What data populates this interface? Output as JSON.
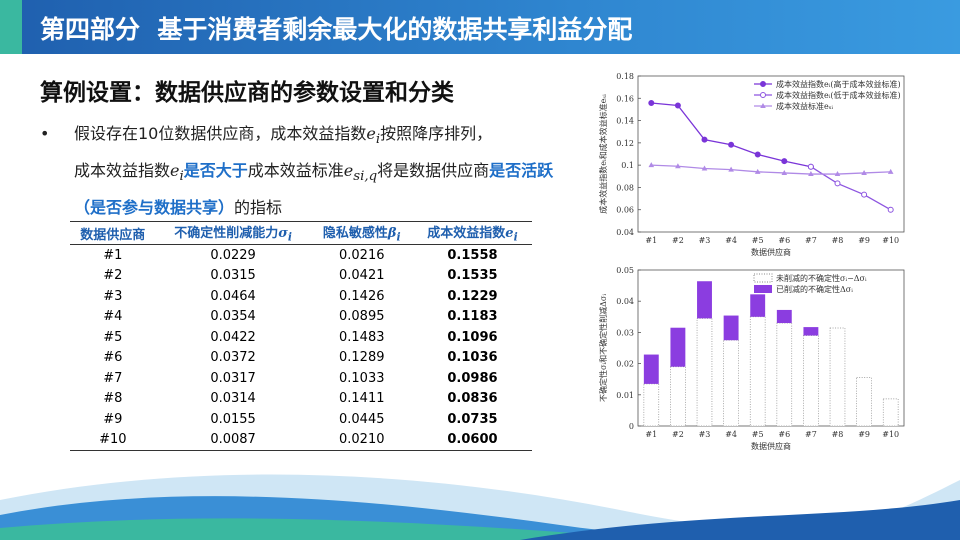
{
  "header": {
    "title": "第四部分  基于消费者剩余最大化的数据共享利益分配"
  },
  "section": {
    "title": "算例设置：数据供应商的参数设置和分类"
  },
  "bullet": {
    "segments": [
      "假设存在10位数据供应商，成本效益指数",
      "e",
      "i",
      "按照降序排列，",
      "成本效益指数",
      "e",
      "i",
      "是否大于",
      "成本效益标准",
      "e",
      "si,q",
      "将是数据供应商",
      "是否活跃（是否参与数据共享）",
      "的指标"
    ]
  },
  "table": {
    "columns": [
      [
        "数据供应商"
      ],
      [
        "不确定性削减能力",
        "σ",
        "i"
      ],
      [
        "隐私敏感性",
        "β",
        "i"
      ],
      [
        "成本效益指数",
        "e",
        "i"
      ]
    ],
    "rows": [
      [
        "#1",
        "0.0229",
        "0.0216",
        "0.1558"
      ],
      [
        "#2",
        "0.0315",
        "0.0421",
        "0.1535"
      ],
      [
        "#3",
        "0.0464",
        "0.1426",
        "0.1229"
      ],
      [
        "#4",
        "0.0354",
        "0.0895",
        "0.1183"
      ],
      [
        "#5",
        "0.0422",
        "0.1483",
        "0.1096"
      ],
      [
        "#6",
        "0.0372",
        "0.1289",
        "0.1036"
      ],
      [
        "#7",
        "0.0317",
        "0.1033",
        "0.0986"
      ],
      [
        "#8",
        "0.0314",
        "0.1411",
        "0.0836"
      ],
      [
        "#9",
        "0.0155",
        "0.0445",
        "0.0735"
      ],
      [
        "#10",
        "0.0087",
        "0.0210",
        "0.0600"
      ]
    ]
  },
  "chart_data": [
    {
      "type": "line",
      "x_label": "数据供应商",
      "y_label": "成本效益指数eᵢ和成本效益标准eₛᵢ",
      "legend": "top-right",
      "categories": [
        "#1",
        "#2",
        "#3",
        "#4",
        "#5",
        "#6",
        "#7",
        "#8",
        "#9",
        "#10"
      ],
      "ylim": [
        0.04,
        0.18
      ],
      "yticks": [
        0.04,
        0.06,
        0.08,
        0.1,
        0.12,
        0.14,
        0.16,
        0.18
      ],
      "series": [
        {
          "name": "成本效益指数eᵢ(高于成本效益标准)",
          "color": "#7a35d8",
          "marker": "circle",
          "values": [
            0.1558,
            0.1535,
            0.1229,
            0.1183,
            0.1096,
            0.1036,
            0.0986,
            null,
            null,
            null
          ]
        },
        {
          "name": "成本效益指数eᵢ(低于成本效益标准)",
          "color": "#8d55e0",
          "marker": "open-circle",
          "values": [
            null,
            null,
            null,
            null,
            null,
            null,
            0.0986,
            0.0836,
            0.0735,
            0.06
          ]
        },
        {
          "name": "成本效益标准eₛᵢ",
          "color": "#b08ae6",
          "marker": "triangle",
          "values": [
            0.1,
            0.099,
            0.097,
            0.096,
            0.094,
            0.093,
            0.092,
            0.092,
            0.093,
            0.094
          ]
        }
      ]
    },
    {
      "type": "stacked-bar",
      "x_label": "数据供应商",
      "y_label": "不确定性σᵢ和不确定性削减Δσᵢ",
      "legend": "top-right",
      "categories": [
        "#1",
        "#2",
        "#3",
        "#4",
        "#5",
        "#6",
        "#7",
        "#8",
        "#9",
        "#10"
      ],
      "ylim": [
        0,
        0.05
      ],
      "yticks": [
        0,
        0.01,
        0.02,
        0.03,
        0.04,
        0.05
      ],
      "series": [
        {
          "name": "未削减的不确定性σᵢ−Δσᵢ",
          "color": "#ffffff",
          "border": "dotted",
          "values": [
            0.0135,
            0.019,
            0.0345,
            0.0275,
            0.035,
            0.033,
            0.029,
            0.0314,
            0.0155,
            0.0087
          ]
        },
        {
          "name": "已削减的不确定性Δσᵢ",
          "color": "#8b3de0",
          "values": [
            0.0094,
            0.0125,
            0.0119,
            0.0079,
            0.0072,
            0.0042,
            0.0027,
            0,
            0,
            0
          ]
        }
      ]
    }
  ]
}
